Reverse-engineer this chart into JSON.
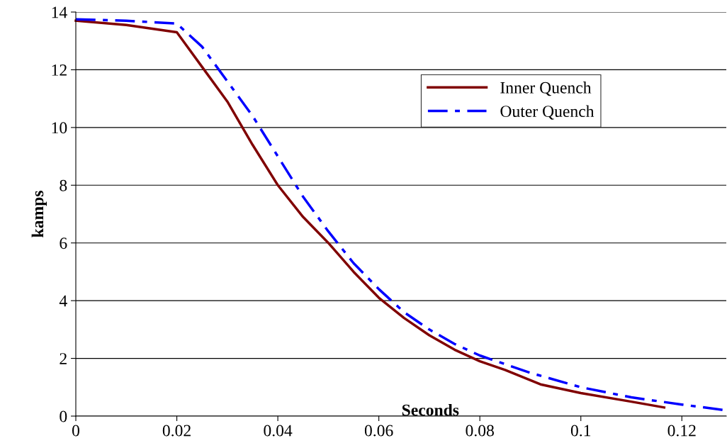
{
  "chart_data": {
    "type": "line",
    "xlabel": "Seconds",
    "ylabel": "kamps",
    "xlim": [
      0,
      0.1288
    ],
    "xticks": [
      0,
      0.02,
      0.04,
      0.06,
      0.08,
      0.1,
      0.12
    ],
    "ylim": [
      0,
      14
    ],
    "yticks": [
      0,
      2,
      4,
      6,
      8,
      10,
      12,
      14
    ],
    "grid": "y",
    "legend": "right",
    "marker": "none",
    "series": [
      {
        "name": "Inner Quench",
        "color": "#800000",
        "line_style": "solid",
        "x": [
          0,
          0.01,
          0.02,
          0.025,
          0.03,
          0.035,
          0.04,
          0.045,
          0.05,
          0.055,
          0.06,
          0.065,
          0.07,
          0.075,
          0.08,
          0.085,
          0.092,
          0.1,
          0.11,
          0.1165
        ],
        "values": [
          13.7,
          13.55,
          13.3,
          12.1,
          10.9,
          9.4,
          8.0,
          6.9,
          6.0,
          5.0,
          4.1,
          3.4,
          2.8,
          2.3,
          1.9,
          1.6,
          1.1,
          0.8,
          0.5,
          0.3
        ]
      },
      {
        "name": "Outer Quench",
        "color": "#0000ff",
        "line_style": "dashdot",
        "x": [
          0,
          0.01,
          0.02,
          0.025,
          0.03,
          0.035,
          0.04,
          0.045,
          0.05,
          0.055,
          0.06,
          0.065,
          0.07,
          0.075,
          0.08,
          0.09,
          0.1,
          0.11,
          0.12,
          0.1288
        ],
        "values": [
          13.75,
          13.7,
          13.6,
          12.8,
          11.6,
          10.4,
          9.0,
          7.6,
          6.4,
          5.3,
          4.4,
          3.6,
          3.0,
          2.5,
          2.1,
          1.5,
          1.0,
          0.65,
          0.4,
          0.2
        ]
      }
    ]
  }
}
